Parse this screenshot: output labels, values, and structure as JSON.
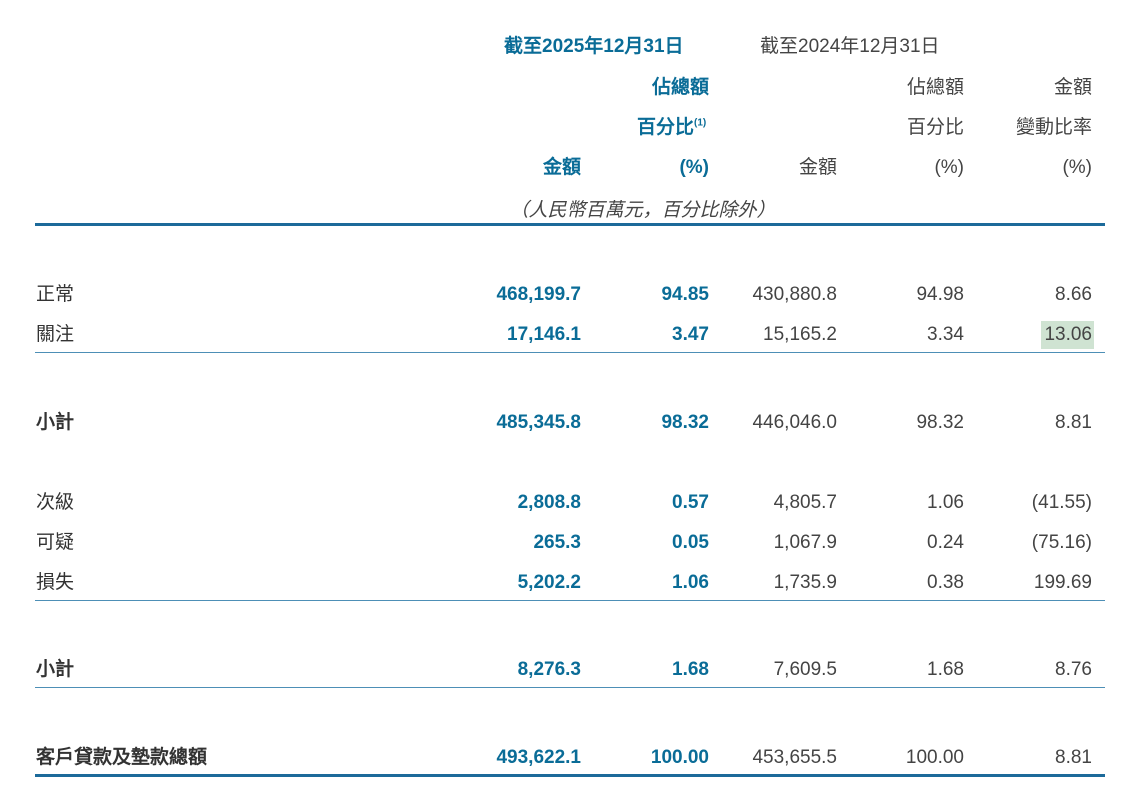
{
  "header": {
    "period_2025": "截至2025年12月31日",
    "period_2024": "截至2024年12月31日",
    "col1_amount": "金額",
    "col2_line1": "佔總額",
    "col2_line2": "百分比",
    "col2_note": "(1)",
    "col2_line3": "(%)",
    "col3_amount": "金額",
    "col4_line1": "佔總額",
    "col4_line2": "百分比",
    "col4_line3": "(%)",
    "col5_line1": "金額",
    "col5_line2": "變動比率",
    "col5_line3": "(%)",
    "unit_note": "（人民幣百萬元，百分比除外）"
  },
  "rows": [
    {
      "label": "正常",
      "amount_2025": "468,199.7",
      "pct_2025": "94.85",
      "amount_2024": "430,880.8",
      "pct_2024": "94.98",
      "change": "8.66"
    },
    {
      "label": "關注",
      "amount_2025": "17,146.1",
      "pct_2025": "3.47",
      "amount_2024": "15,165.2",
      "pct_2024": "3.34",
      "change": "13.06"
    },
    {
      "label": "小計",
      "amount_2025": "485,345.8",
      "pct_2025": "98.32",
      "amount_2024": "446,046.0",
      "pct_2024": "98.32",
      "change": "8.81"
    },
    {
      "label": "次級",
      "amount_2025": "2,808.8",
      "pct_2025": "0.57",
      "amount_2024": "4,805.7",
      "pct_2024": "1.06",
      "change": "(41.55)"
    },
    {
      "label": "可疑",
      "amount_2025": "265.3",
      "pct_2025": "0.05",
      "amount_2024": "1,067.9",
      "pct_2024": "0.24",
      "change": "(75.16)"
    },
    {
      "label": "損失",
      "amount_2025": "5,202.2",
      "pct_2025": "1.06",
      "amount_2024": "1,735.9",
      "pct_2024": "0.38",
      "change": "199.69"
    },
    {
      "label": "小計",
      "amount_2025": "8,276.3",
      "pct_2025": "1.68",
      "amount_2024": "7,609.5",
      "pct_2024": "1.68",
      "change": "8.76"
    },
    {
      "label": "客戶貸款及墊款總額",
      "amount_2025": "493,622.1",
      "pct_2025": "100.00",
      "amount_2024": "453,655.5",
      "pct_2024": "100.00",
      "change": "8.81"
    }
  ],
  "colors": {
    "accent_blue": "#0a6c97",
    "rule_blue": "#1c6a9a",
    "highlight_green": "#cfe3d2"
  }
}
